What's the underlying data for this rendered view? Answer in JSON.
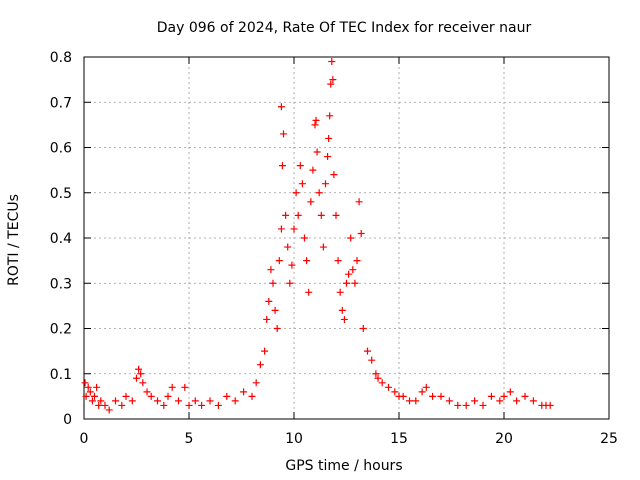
{
  "chart_data": {
    "type": "scatter",
    "title": "Day 096 of 2024, Rate Of TEC Index for receiver naur",
    "xlabel": "GPS time / hours",
    "ylabel": "ROTI / TECUs",
    "xlim": [
      0,
      25
    ],
    "ylim": [
      0,
      0.8
    ],
    "xticks": [
      0,
      5,
      10,
      15,
      20,
      25
    ],
    "yticks": [
      0,
      0.1,
      0.2,
      0.3,
      0.4,
      0.5,
      0.6,
      0.7,
      0.8
    ],
    "xtick_labels": [
      "0",
      "5",
      "10",
      "15",
      "20",
      "25"
    ],
    "ytick_labels": [
      "0",
      "0.1",
      "0.2",
      "0.3",
      "0.4",
      "0.5",
      "0.6",
      "0.7",
      "0.8"
    ],
    "grid": true,
    "marker": "+",
    "marker_color": "#ff0000",
    "series": [
      {
        "points": [
          [
            0.05,
            0.08
          ],
          [
            0.1,
            0.05
          ],
          [
            0.2,
            0.07
          ],
          [
            0.3,
            0.06
          ],
          [
            0.4,
            0.04
          ],
          [
            0.5,
            0.05
          ],
          [
            0.6,
            0.07
          ],
          [
            0.7,
            0.03
          ],
          [
            0.8,
            0.04
          ],
          [
            1.0,
            0.03
          ],
          [
            1.2,
            0.02
          ],
          [
            1.5,
            0.04
          ],
          [
            1.8,
            0.03
          ],
          [
            2.0,
            0.05
          ],
          [
            2.3,
            0.04
          ],
          [
            2.5,
            0.09
          ],
          [
            2.6,
            0.11
          ],
          [
            2.7,
            0.1
          ],
          [
            2.8,
            0.08
          ],
          [
            3.0,
            0.06
          ],
          [
            3.2,
            0.05
          ],
          [
            3.5,
            0.04
          ],
          [
            3.8,
            0.03
          ],
          [
            4.0,
            0.05
          ],
          [
            4.2,
            0.07
          ],
          [
            4.5,
            0.04
          ],
          [
            4.8,
            0.07
          ],
          [
            5.0,
            0.03
          ],
          [
            5.3,
            0.04
          ],
          [
            5.6,
            0.03
          ],
          [
            6.0,
            0.04
          ],
          [
            6.4,
            0.03
          ],
          [
            6.8,
            0.05
          ],
          [
            7.2,
            0.04
          ],
          [
            7.6,
            0.06
          ],
          [
            8.0,
            0.05
          ],
          [
            8.2,
            0.08
          ],
          [
            8.4,
            0.12
          ],
          [
            8.6,
            0.15
          ],
          [
            8.7,
            0.22
          ],
          [
            8.8,
            0.26
          ],
          [
            8.9,
            0.33
          ],
          [
            9.0,
            0.3
          ],
          [
            9.1,
            0.24
          ],
          [
            9.2,
            0.2
          ],
          [
            9.3,
            0.35
          ],
          [
            9.4,
            0.42
          ],
          [
            9.45,
            0.56
          ],
          [
            9.5,
            0.63
          ],
          [
            9.4,
            0.69
          ],
          [
            9.6,
            0.45
          ],
          [
            9.7,
            0.38
          ],
          [
            9.8,
            0.3
          ],
          [
            9.9,
            0.34
          ],
          [
            10.0,
            0.42
          ],
          [
            10.1,
            0.5
          ],
          [
            10.2,
            0.45
          ],
          [
            10.3,
            0.56
          ],
          [
            10.4,
            0.52
          ],
          [
            10.5,
            0.4
          ],
          [
            10.6,
            0.35
          ],
          [
            10.7,
            0.28
          ],
          [
            10.8,
            0.48
          ],
          [
            10.9,
            0.55
          ],
          [
            11.0,
            0.65
          ],
          [
            11.05,
            0.66
          ],
          [
            11.1,
            0.59
          ],
          [
            11.2,
            0.5
          ],
          [
            11.3,
            0.45
          ],
          [
            11.4,
            0.38
          ],
          [
            11.5,
            0.52
          ],
          [
            11.6,
            0.58
          ],
          [
            11.65,
            0.62
          ],
          [
            11.7,
            0.67
          ],
          [
            11.75,
            0.74
          ],
          [
            11.8,
            0.79
          ],
          [
            11.85,
            0.75
          ],
          [
            11.9,
            0.54
          ],
          [
            12.0,
            0.45
          ],
          [
            12.1,
            0.35
          ],
          [
            12.2,
            0.28
          ],
          [
            12.3,
            0.24
          ],
          [
            12.4,
            0.22
          ],
          [
            12.5,
            0.3
          ],
          [
            12.6,
            0.32
          ],
          [
            12.7,
            0.4
          ],
          [
            12.8,
            0.33
          ],
          [
            12.9,
            0.3
          ],
          [
            13.0,
            0.35
          ],
          [
            13.1,
            0.48
          ],
          [
            13.2,
            0.41
          ],
          [
            13.3,
            0.2
          ],
          [
            13.5,
            0.15
          ],
          [
            13.7,
            0.13
          ],
          [
            13.9,
            0.1
          ],
          [
            14.0,
            0.09
          ],
          [
            14.2,
            0.08
          ],
          [
            14.5,
            0.07
          ],
          [
            14.8,
            0.06
          ],
          [
            15.0,
            0.05
          ],
          [
            15.2,
            0.05
          ],
          [
            15.5,
            0.04
          ],
          [
            15.8,
            0.04
          ],
          [
            16.1,
            0.06
          ],
          [
            16.3,
            0.07
          ],
          [
            16.6,
            0.05
          ],
          [
            17.0,
            0.05
          ],
          [
            17.4,
            0.04
          ],
          [
            17.8,
            0.03
          ],
          [
            18.2,
            0.03
          ],
          [
            18.6,
            0.04
          ],
          [
            19.0,
            0.03
          ],
          [
            19.4,
            0.05
          ],
          [
            19.8,
            0.04
          ],
          [
            20.0,
            0.05
          ],
          [
            20.3,
            0.06
          ],
          [
            20.6,
            0.04
          ],
          [
            21.0,
            0.05
          ],
          [
            21.4,
            0.04
          ],
          [
            21.8,
            0.03
          ],
          [
            22.0,
            0.03
          ],
          [
            22.2,
            0.03
          ]
        ]
      }
    ]
  }
}
